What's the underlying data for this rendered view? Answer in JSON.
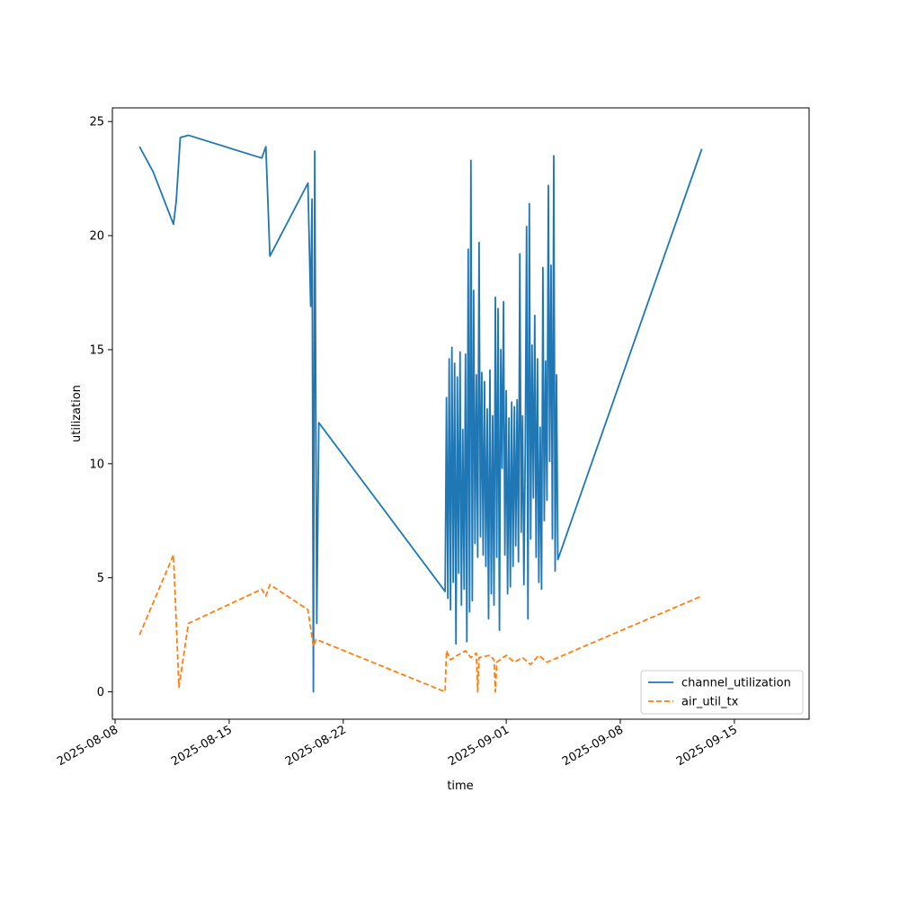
{
  "chart_data": {
    "type": "line",
    "title": "",
    "xlabel": "time",
    "ylabel": "utilization",
    "xlim": [
      "2025-08-07T20:00",
      "2025-09-19T14:00"
    ],
    "ylim": [
      -1.2,
      25.6
    ],
    "grid": false,
    "legend_position": "lower-right",
    "x_ticks": [
      "2025-08-08",
      "2025-08-15",
      "2025-08-22",
      "2025-09-01",
      "2025-09-08",
      "2025-09-15"
    ],
    "y_ticks": [
      0,
      5,
      10,
      15,
      20,
      25
    ],
    "series": [
      {
        "name": "channel_utilization",
        "color": "#1f77b4",
        "dash": "solid",
        "points": [
          [
            "2025-08-09T12:00",
            23.9
          ],
          [
            "2025-08-10T08:00",
            22.8
          ],
          [
            "2025-08-11T14:00",
            20.5
          ],
          [
            "2025-08-11T18:00",
            21.5
          ],
          [
            "2025-08-12T00:00",
            24.3
          ],
          [
            "2025-08-12T12:00",
            24.4
          ],
          [
            "2025-08-17T00:00",
            23.4
          ],
          [
            "2025-08-17T06:00",
            23.9
          ],
          [
            "2025-08-17T12:00",
            19.1
          ],
          [
            "2025-08-19T20:00",
            22.3
          ],
          [
            "2025-08-20T00:00",
            16.9
          ],
          [
            "2025-08-20T02:00",
            21.6
          ],
          [
            "2025-08-20T04:00",
            0.0
          ],
          [
            "2025-08-20T06:00",
            23.7
          ],
          [
            "2025-08-20T09:00",
            3.0
          ],
          [
            "2025-08-20T12:00",
            11.8
          ],
          [
            "2025-08-28T06:00",
            4.4
          ],
          [
            "2025-08-28T08:00",
            12.9
          ],
          [
            "2025-08-28T10:00",
            4.1
          ],
          [
            "2025-08-28T12:00",
            14.6
          ],
          [
            "2025-08-28T14:00",
            3.6
          ],
          [
            "2025-08-28T16:00",
            15.1
          ],
          [
            "2025-08-28T18:00",
            4.8
          ],
          [
            "2025-08-28T20:00",
            14.4
          ],
          [
            "2025-08-28T22:00",
            2.1
          ],
          [
            "2025-08-29T00:00",
            13.8
          ],
          [
            "2025-08-29T02:00",
            5.2
          ],
          [
            "2025-08-29T04:00",
            14.9
          ],
          [
            "2025-08-29T06:00",
            3.8
          ],
          [
            "2025-08-29T08:00",
            11.5
          ],
          [
            "2025-08-29T10:00",
            4.5
          ],
          [
            "2025-08-29T12:00",
            14.8
          ],
          [
            "2025-08-29T14:00",
            2.2
          ],
          [
            "2025-08-29T16:00",
            19.4
          ],
          [
            "2025-08-29T18:00",
            3.5
          ],
          [
            "2025-08-29T20:00",
            23.3
          ],
          [
            "2025-08-29T22:00",
            4.0
          ],
          [
            "2025-08-30T00:00",
            17.6
          ],
          [
            "2025-08-30T02:00",
            6.5
          ],
          [
            "2025-08-30T04:00",
            13.9
          ],
          [
            "2025-08-30T06:00",
            5.9
          ],
          [
            "2025-08-30T08:00",
            19.7
          ],
          [
            "2025-08-30T10:00",
            6.8
          ],
          [
            "2025-08-30T12:00",
            14.0
          ],
          [
            "2025-08-30T14:00",
            6.0
          ],
          [
            "2025-08-30T16:00",
            13.6
          ],
          [
            "2025-08-30T18:00",
            5.5
          ],
          [
            "2025-08-30T20:00",
            12.4
          ],
          [
            "2025-08-30T22:00",
            3.2
          ],
          [
            "2025-08-31T00:00",
            14.1
          ],
          [
            "2025-08-31T02:00",
            4.3
          ],
          [
            "2025-08-31T04:00",
            12.1
          ],
          [
            "2025-08-31T06:00",
            3.8
          ],
          [
            "2025-08-31T08:00",
            17.3
          ],
          [
            "2025-08-31T10:00",
            5.9
          ],
          [
            "2025-08-31T12:00",
            16.8
          ],
          [
            "2025-08-31T14:00",
            2.7
          ],
          [
            "2025-08-31T16:00",
            15.0
          ],
          [
            "2025-08-31T18:00",
            9.8
          ],
          [
            "2025-08-31T20:00",
            17.1
          ],
          [
            "2025-08-31T22:00",
            6.0
          ],
          [
            "2025-09-01T00:00",
            13.2
          ],
          [
            "2025-09-01T02:00",
            4.3
          ],
          [
            "2025-09-01T04:00",
            12.0
          ],
          [
            "2025-09-01T06:00",
            4.6
          ],
          [
            "2025-09-01T08:00",
            12.7
          ],
          [
            "2025-09-01T10:00",
            5.5
          ],
          [
            "2025-09-01T12:00",
            12.5
          ],
          [
            "2025-09-01T14:00",
            6.4
          ],
          [
            "2025-09-01T16:00",
            12.8
          ],
          [
            "2025-09-01T18:00",
            5.7
          ],
          [
            "2025-09-01T20:00",
            19.2
          ],
          [
            "2025-09-01T22:00",
            7.0
          ],
          [
            "2025-09-02T00:00",
            12.1
          ],
          [
            "2025-09-02T02:00",
            4.7
          ],
          [
            "2025-09-02T04:00",
            10.5
          ],
          [
            "2025-09-02T06:00",
            20.4
          ],
          [
            "2025-09-02T08:00",
            3.2
          ],
          [
            "2025-09-02T10:00",
            21.4
          ],
          [
            "2025-09-02T12:00",
            6.7
          ],
          [
            "2025-09-02T14:00",
            15.2
          ],
          [
            "2025-09-02T16:00",
            8.5
          ],
          [
            "2025-09-02T18:00",
            16.5
          ],
          [
            "2025-09-02T20:00",
            5.9
          ],
          [
            "2025-09-02T22:00",
            14.6
          ],
          [
            "2025-09-03T00:00",
            4.8
          ],
          [
            "2025-09-03T02:00",
            11.6
          ],
          [
            "2025-09-03T04:00",
            4.5
          ],
          [
            "2025-09-03T06:00",
            18.6
          ],
          [
            "2025-09-03T08:00",
            7.5
          ],
          [
            "2025-09-03T10:00",
            14.5
          ],
          [
            "2025-09-03T12:00",
            8.4
          ],
          [
            "2025-09-03T14:00",
            22.2
          ],
          [
            "2025-09-03T16:00",
            10.1
          ],
          [
            "2025-09-03T18:00",
            18.7
          ],
          [
            "2025-09-03T20:00",
            6.7
          ],
          [
            "2025-09-03T22:00",
            23.5
          ],
          [
            "2025-09-04T00:00",
            5.3
          ],
          [
            "2025-09-04T02:00",
            13.9
          ],
          [
            "2025-09-04T04:00",
            5.8
          ],
          [
            "2025-09-13T00:00",
            23.8
          ]
        ]
      },
      {
        "name": "air_util_tx",
        "color": "#ff7f0e",
        "dash": "dashed",
        "points": [
          [
            "2025-08-09T12:00",
            2.5
          ],
          [
            "2025-08-11T14:00",
            6.0
          ],
          [
            "2025-08-11T22:00",
            0.2
          ],
          [
            "2025-08-12T12:00",
            3.0
          ],
          [
            "2025-08-17T00:00",
            4.5
          ],
          [
            "2025-08-17T06:00",
            4.2
          ],
          [
            "2025-08-17T12:00",
            4.7
          ],
          [
            "2025-08-19T20:00",
            3.6
          ],
          [
            "2025-08-20T04:00",
            2.0
          ],
          [
            "2025-08-20T08:00",
            2.3
          ],
          [
            "2025-08-28T06:00",
            0.0
          ],
          [
            "2025-08-28T08:00",
            1.8
          ],
          [
            "2025-08-28T14:00",
            1.4
          ],
          [
            "2025-08-29T00:00",
            1.6
          ],
          [
            "2025-08-29T12:00",
            1.8
          ],
          [
            "2025-08-29T20:00",
            1.5
          ],
          [
            "2025-08-30T04:00",
            1.7
          ],
          [
            "2025-08-30T06:00",
            0.0
          ],
          [
            "2025-08-30T08:00",
            1.5
          ],
          [
            "2025-08-31T00:00",
            1.6
          ],
          [
            "2025-08-31T06:00",
            1.4
          ],
          [
            "2025-08-31T08:00",
            0.0
          ],
          [
            "2025-08-31T10:00",
            1.3
          ],
          [
            "2025-09-01T00:00",
            1.6
          ],
          [
            "2025-09-01T12:00",
            1.3
          ],
          [
            "2025-09-02T00:00",
            1.5
          ],
          [
            "2025-09-02T12:00",
            1.2
          ],
          [
            "2025-09-03T00:00",
            1.6
          ],
          [
            "2025-09-03T12:00",
            1.3
          ],
          [
            "2025-09-04T04:00",
            1.5
          ],
          [
            "2025-09-13T00:00",
            4.2
          ]
        ]
      }
    ]
  }
}
